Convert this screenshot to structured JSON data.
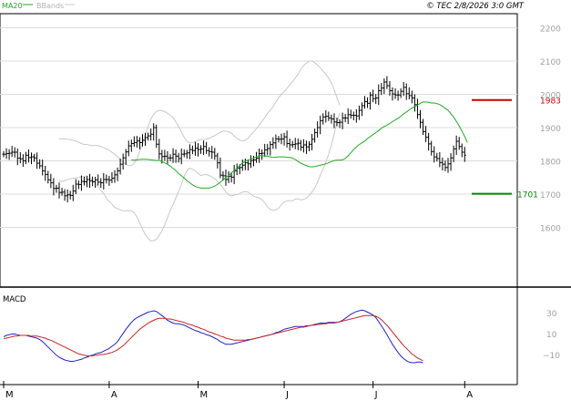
{
  "header": {
    "legend_ma": "MA20",
    "legend_bbands": "BBands",
    "source": "© TEC 2/8/2026 3:0 GMT"
  },
  "price_panel": {
    "level_resistance": "1983",
    "level_support": "1701"
  },
  "macd_panel": {
    "title": "MACD"
  },
  "colors": {
    "ma20": "#22aa22",
    "bbands": "#c8c8c8",
    "bars": "#000000",
    "macd": "#2222cc",
    "signal": "#cc2222",
    "resistance": "#cc0000",
    "support": "#008800",
    "grid": "#dcdcdc",
    "axis_text": "#a0a0a0"
  },
  "chart_data": [
    {
      "type": "line",
      "title": "",
      "ylabel": "",
      "ylim": [
        1520,
        2270
      ],
      "y_ticks": [
        "2200",
        "2100",
        "2000",
        "1900",
        "1800",
        "1700",
        "1600"
      ],
      "y_tick_values": [
        2200,
        2100,
        2000,
        1900,
        1800,
        1700,
        1600
      ],
      "x_ticks": [
        "M",
        "A",
        "M",
        "J",
        "J",
        "A"
      ],
      "x_tick_index": [
        0,
        38,
        70,
        101,
        133,
        166
      ],
      "levels": [
        {
          "label": "1983",
          "value": 1983
        },
        {
          "label": "1701",
          "value": 1701
        }
      ],
      "close": [
        1820,
        1822,
        1823,
        1826,
        1826,
        1808,
        1806,
        1800,
        1817,
        1810,
        1812,
        1809,
        1793,
        1785,
        1770,
        1759,
        1743,
        1734,
        1717,
        1718,
        1705,
        1706,
        1695,
        1698,
        1696,
        1709,
        1730,
        1729,
        1738,
        1737,
        1744,
        1740,
        1737,
        1743,
        1736,
        1734,
        1744,
        1744,
        1742,
        1748,
        1758,
        1770,
        1790,
        1809,
        1827,
        1845,
        1852,
        1855,
        1860,
        1855,
        1862,
        1870,
        1875,
        1880,
        1900,
        1850,
        1821,
        1813,
        1814,
        1809,
        1809,
        1820,
        1814,
        1807,
        1820,
        1821,
        1824,
        1834,
        1831,
        1838,
        1834,
        1836,
        1843,
        1831,
        1828,
        1826,
        1815,
        1794,
        1757,
        1755,
        1744,
        1754,
        1751,
        1770,
        1778,
        1780,
        1787,
        1794,
        1791,
        1801,
        1803,
        1808,
        1822,
        1823,
        1833,
        1837,
        1849,
        1854,
        1866,
        1865,
        1866,
        1872,
        1852,
        1848,
        1849,
        1851,
        1853,
        1841,
        1848,
        1842,
        1850,
        1865,
        1885,
        1900,
        1921,
        1932,
        1934,
        1929,
        1926,
        1917,
        1915,
        1916,
        1929,
        1929,
        1939,
        1937,
        1937,
        1935,
        1952,
        1966,
        1978,
        1973,
        1998,
        1987,
        1989,
        2011,
        2019,
        2037,
        2026,
        2011,
        2001,
        1998,
        1998,
        2009,
        2021,
        2002,
        1996,
        1989,
        1969,
        1939,
        1916,
        1888,
        1871,
        1851,
        1828,
        1812,
        1807,
        1795,
        1790,
        1780,
        1791,
        1809,
        1836,
        1859,
        1843,
        1826,
        1817
      ],
      "ma20": [
        1803,
        1802,
        1803,
        1804,
        1805,
        1805,
        1804,
        1803,
        1802,
        1801,
        1802,
        1798,
        1794,
        1790,
        1784,
        1777,
        1771,
        1762,
        1755,
        1748,
        1740,
        1734,
        1728,
        1723,
        1720,
        1718,
        1718,
        1718,
        1718,
        1721,
        1724,
        1729,
        1736,
        1742,
        1750,
        1756,
        1764,
        1770,
        1778,
        1786,
        1794,
        1799,
        1803,
        1805,
        1808,
        1812,
        1815,
        1816,
        1815,
        1814,
        1812,
        1810,
        1811,
        1812,
        1812,
        1812,
        1811,
        1810,
        1808,
        1804,
        1798,
        1793,
        1789,
        1786,
        1783,
        1782,
        1783,
        1785,
        1787,
        1789,
        1791,
        1794,
        1798,
        1801,
        1802,
        1802,
        1803,
        1807,
        1815,
        1824,
        1834,
        1842,
        1849,
        1854,
        1859,
        1867,
        1873,
        1879,
        1885,
        1891,
        1898,
        1903,
        1907,
        1912,
        1918,
        1923,
        1928,
        1934,
        1941,
        1947,
        1953,
        1959,
        1963,
        1968,
        1973,
        1977,
        1977,
        1976,
        1974,
        1974,
        1972,
        1969,
        1964,
        1958,
        1952,
        1942,
        1932,
        1919,
        1905,
        1890,
        1873,
        1855
      ],
      "bb_upper": [
        1866,
        1866,
        1866,
        1865,
        1864,
        1862,
        1860,
        1856,
        1852,
        1849,
        1849,
        1847,
        1846,
        1846,
        1846,
        1843,
        1840,
        1836,
        1832,
        1826,
        1820,
        1812,
        1803,
        1796,
        1790,
        1786,
        1786,
        1792,
        1805,
        1828,
        1853,
        1879,
        1904,
        1925,
        1940,
        1948,
        1952,
        1951,
        1948,
        1943,
        1937,
        1930,
        1917,
        1903,
        1887,
        1870,
        1859,
        1854,
        1855,
        1858,
        1862,
        1864,
        1864,
        1865,
        1868,
        1872,
        1876,
        1881,
        1886,
        1889,
        1889,
        1888,
        1883,
        1875,
        1868,
        1862,
        1860,
        1862,
        1868,
        1878,
        1888,
        1897,
        1907,
        1919,
        1930,
        1943,
        1952,
        1963,
        1977,
        1990,
        2000,
        2008,
        2018,
        2028,
        2038,
        2049,
        2060,
        2075,
        2086,
        2094,
        2100,
        2100,
        2095,
        2088,
        2079,
        2070,
        2060,
        2049,
        2034,
        2014,
        1990,
        1967
      ],
      "bb_lower": [
        1740,
        1738,
        1740,
        1743,
        1746,
        1748,
        1748,
        1750,
        1752,
        1753,
        1755,
        1749,
        1742,
        1734,
        1722,
        1711,
        1702,
        1688,
        1678,
        1670,
        1660,
        1656,
        1653,
        1650,
        1650,
        1650,
        1650,
        1644,
        1631,
        1614,
        1595,
        1579,
        1568,
        1559,
        1560,
        1564,
        1576,
        1589,
        1608,
        1629,
        1651,
        1668,
        1689,
        1707,
        1729,
        1754,
        1771,
        1778,
        1775,
        1770,
        1762,
        1756,
        1758,
        1759,
        1756,
        1752,
        1746,
        1739,
        1730,
        1719,
        1707,
        1698,
        1695,
        1697,
        1698,
        1702,
        1706,
        1708,
        1706,
        1700,
        1694,
        1691,
        1689,
        1683,
        1674,
        1661,
        1654,
        1651,
        1653,
        1658,
        1668,
        1676,
        1680,
        1680,
        1680,
        1685,
        1686,
        1683,
        1684,
        1688,
        1696,
        1706,
        1719,
        1736,
        1757,
        1776,
        1796,
        1819,
        1848,
        1880,
        1916,
        1943
      ],
      "macd": [
        10,
        12,
        13,
        14,
        14,
        13,
        12,
        12,
        12,
        11,
        10,
        9,
        8,
        6,
        3,
        -1,
        -5,
        -9,
        -13,
        -17,
        -20,
        -22,
        -24,
        -25,
        -26,
        -26,
        -25,
        -24,
        -23,
        -21,
        -20,
        -18,
        -17,
        -15,
        -14,
        -13,
        -11,
        -9,
        -7,
        -4,
        -1,
        3,
        9,
        15,
        21,
        26,
        31,
        35,
        38,
        40,
        42,
        44,
        46,
        47,
        48,
        47,
        44,
        41,
        38,
        34,
        32,
        30,
        29,
        29,
        28,
        27,
        25,
        23,
        21,
        19,
        18,
        16,
        15,
        13,
        12,
        10,
        8,
        6,
        3,
        1,
        -1,
        -1,
        -1,
        0,
        1,
        2,
        3,
        4,
        5,
        6,
        7,
        8,
        9,
        10,
        11,
        12,
        13,
        14,
        16,
        17,
        19,
        21,
        22,
        23,
        24,
        25,
        25,
        25,
        25,
        26,
        26,
        27,
        28,
        29,
        30,
        30,
        30,
        31,
        31,
        31,
        31,
        32,
        34,
        37,
        40,
        43,
        45,
        47,
        48,
        49,
        48,
        46,
        44,
        42,
        38,
        32,
        26,
        20,
        13,
        6,
        -1,
        -7,
        -13,
        -18,
        -22,
        -25,
        -27,
        -28,
        -28,
        -27,
        -27,
        -28
      ],
      "signal": [
        7,
        8,
        9,
        10,
        11,
        11,
        12,
        12,
        12,
        12,
        11,
        11,
        11,
        10,
        9,
        8,
        6,
        5,
        3,
        1,
        -1,
        -3,
        -5,
        -7,
        -9,
        -11,
        -13,
        -15,
        -16,
        -17,
        -18,
        -18,
        -18,
        -17,
        -17,
        -16,
        -16,
        -15,
        -14,
        -13,
        -11,
        -9,
        -6,
        -3,
        1,
        5,
        9,
        13,
        17,
        21,
        24,
        27,
        30,
        32,
        34,
        36,
        37,
        37,
        37,
        36,
        36,
        35,
        34,
        33,
        32,
        31,
        29,
        28,
        27,
        25,
        24,
        22,
        21,
        19,
        17,
        16,
        14,
        13,
        11,
        10,
        8,
        7,
        6,
        5,
        5,
        5,
        5,
        5,
        6,
        6,
        7,
        8,
        9,
        10,
        11,
        12,
        13,
        14,
        15,
        16,
        17,
        18,
        19,
        20,
        21,
        22,
        23,
        24,
        24,
        25,
        26,
        27,
        27,
        28,
        28,
        29,
        29,
        30,
        30,
        30,
        31,
        32,
        33,
        34,
        35,
        36,
        37,
        38,
        39,
        40,
        41,
        41,
        41,
        41,
        40,
        38,
        35,
        31,
        27,
        22,
        17,
        12,
        7,
        2,
        -3,
        -7,
        -11,
        -15,
        -18,
        -21,
        -23,
        -25
      ]
    }
  ]
}
